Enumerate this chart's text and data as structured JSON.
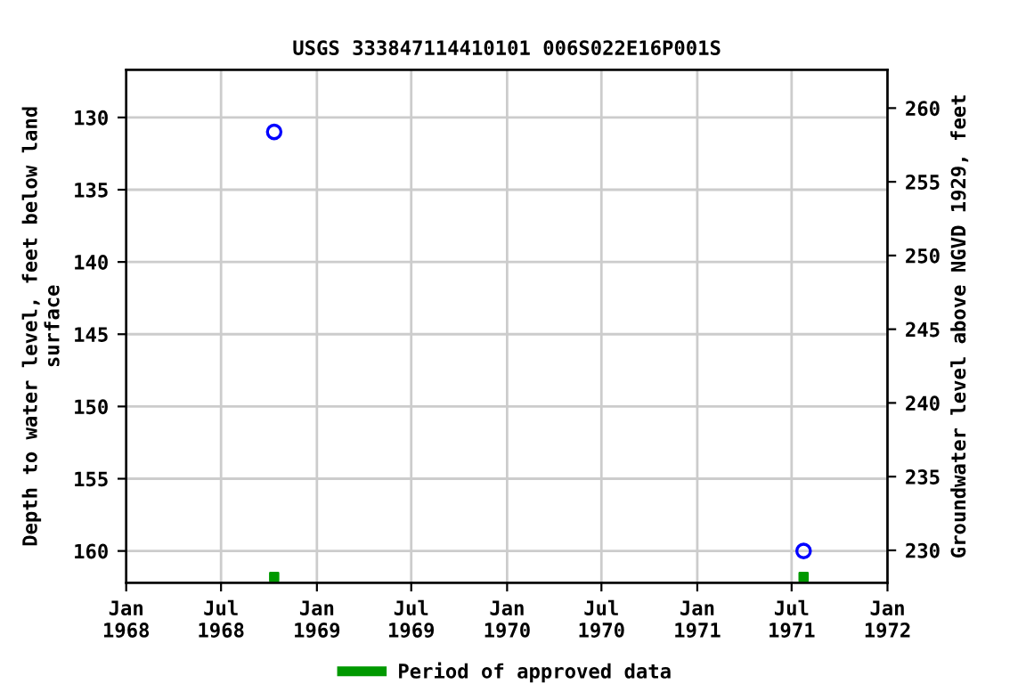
{
  "chart_data": {
    "type": "scatter",
    "title": "USGS 333847114410101 006S022E16P001S",
    "ylabel": "Depth to water level, feet below land\nsurface",
    "y2label": "Groundwater level above NGVD 1929, feet",
    "xlim": [
      "1968-01-01",
      "1972-01-01"
    ],
    "xticks": [
      {
        "value": "1968-01-01",
        "label": "Jan\n1968"
      },
      {
        "value": "1968-07-01",
        "label": "Jul\n1968"
      },
      {
        "value": "1969-01-01",
        "label": "Jan\n1969"
      },
      {
        "value": "1969-07-01",
        "label": "Jul\n1969"
      },
      {
        "value": "1970-01-01",
        "label": "Jan\n1970"
      },
      {
        "value": "1970-07-01",
        "label": "Jul\n1970"
      },
      {
        "value": "1971-01-01",
        "label": "Jan\n1971"
      },
      {
        "value": "1971-07-01",
        "label": "Jul\n1971"
      },
      {
        "value": "1972-01-01",
        "label": "Jan\n1972"
      }
    ],
    "ylim": [
      162.2,
      126.7
    ],
    "yticks": [
      130,
      135,
      140,
      145,
      150,
      155,
      160
    ],
    "y2lim": [
      227.8,
      262.6
    ],
    "y2ticks": [
      230,
      235,
      240,
      245,
      250,
      255,
      260
    ],
    "grid": true,
    "legend": "bottom",
    "series": [
      {
        "marker": "circle",
        "color": "#0000ff",
        "x": [
          "1968-10-11",
          "1971-07-24"
        ],
        "values": [
          131.0,
          160.0
        ]
      },
      {
        "marker": "square",
        "name": "Period of approved data",
        "color": "#009900",
        "x": [
          "1968-10-11",
          "1971-07-24"
        ],
        "values": [
          161.8,
          161.8
        ]
      }
    ]
  }
}
